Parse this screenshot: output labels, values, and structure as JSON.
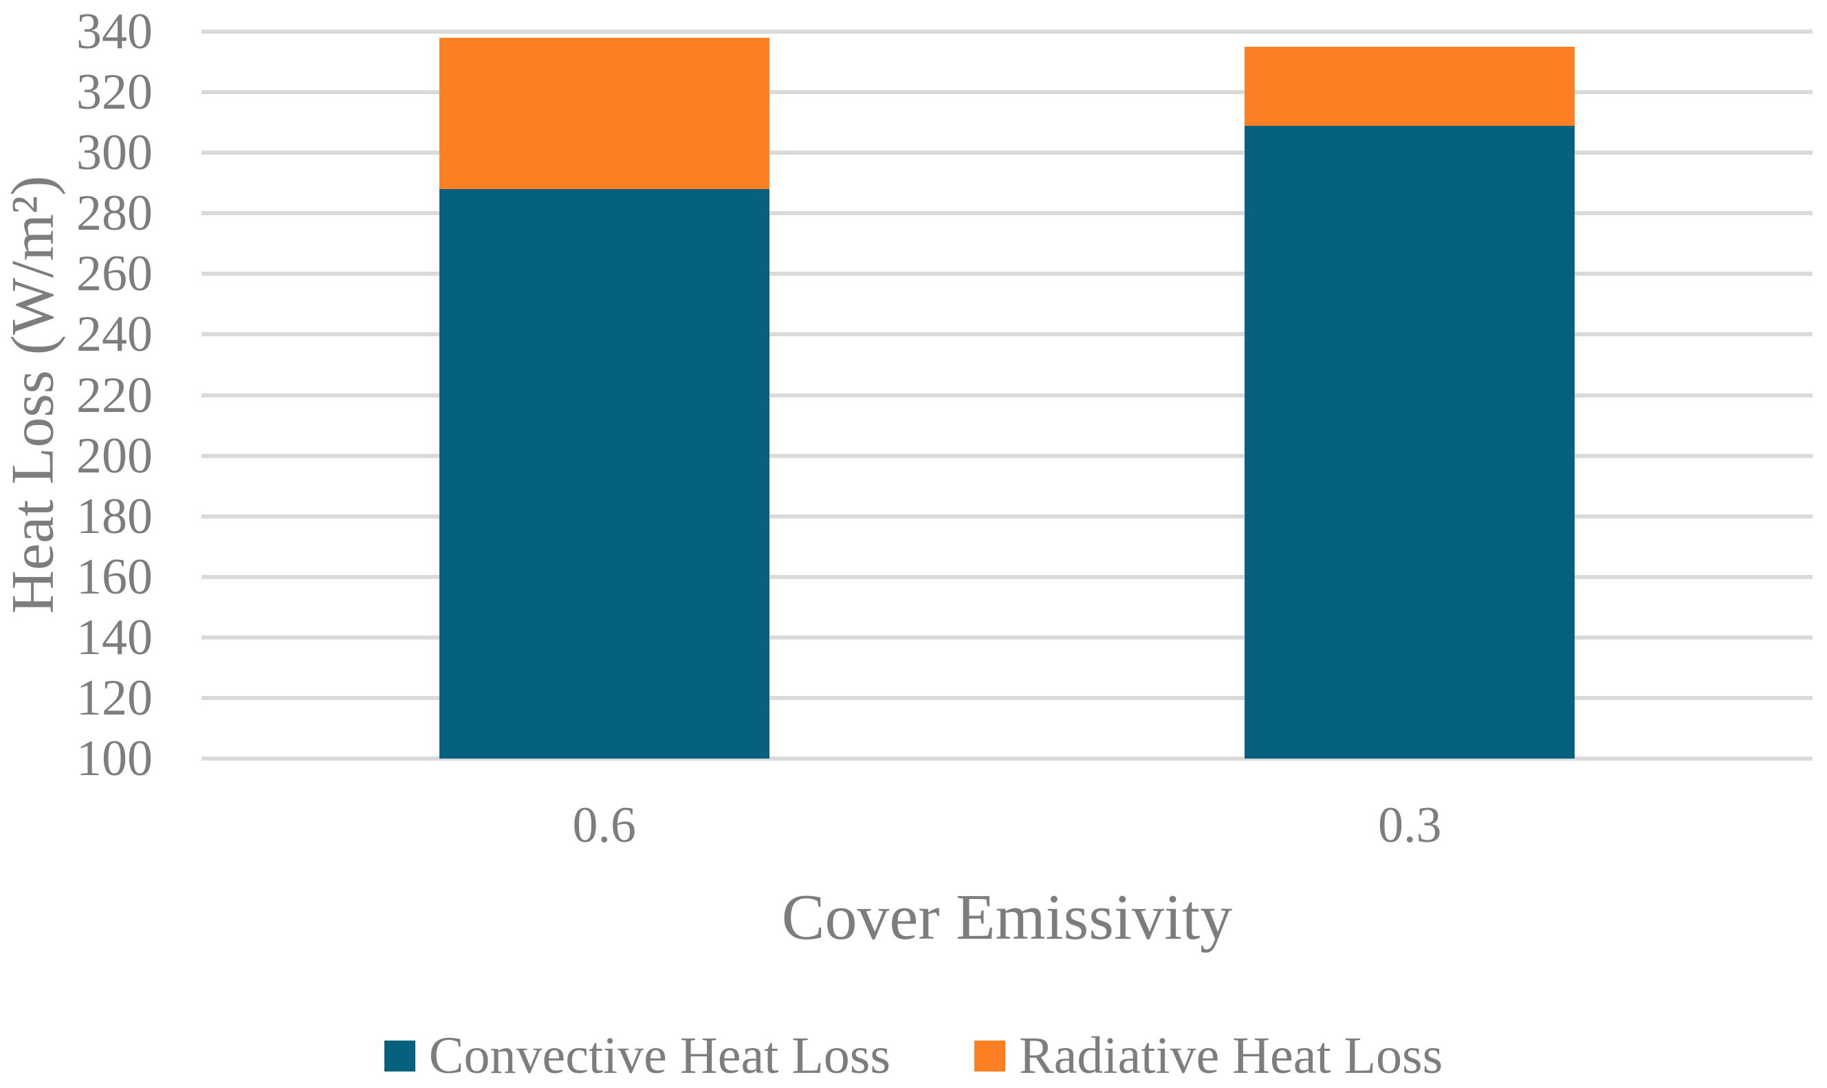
{
  "chart_data": {
    "type": "bar",
    "stacked": true,
    "title": "",
    "xlabel": "Cover Emissivity",
    "ylabel": "Heat Loss (W/m²)",
    "categories": [
      "0.6",
      "0.3"
    ],
    "series": [
      {
        "name": "Convective Heat Loss",
        "color": "#06617f",
        "values": [
          288,
          309
        ]
      },
      {
        "name": "Radiative Heat Loss",
        "color": "#fc7f23",
        "values": [
          50,
          26
        ]
      }
    ],
    "totals": [
      338,
      335
    ],
    "ylim": [
      100,
      340
    ],
    "ytick_step": 20,
    "yticks": [
      340,
      320,
      300,
      280,
      260,
      240,
      220,
      200,
      180,
      160,
      140,
      120,
      100
    ],
    "grid": "horizontal",
    "legend_position": "bottom"
  },
  "colors": {
    "text_gray": "#7d7d7d",
    "gridline_gray": "#dadada",
    "background": "#ffffff",
    "convective_blue": "#06617f",
    "radiative_orange": "#fc7f23"
  }
}
